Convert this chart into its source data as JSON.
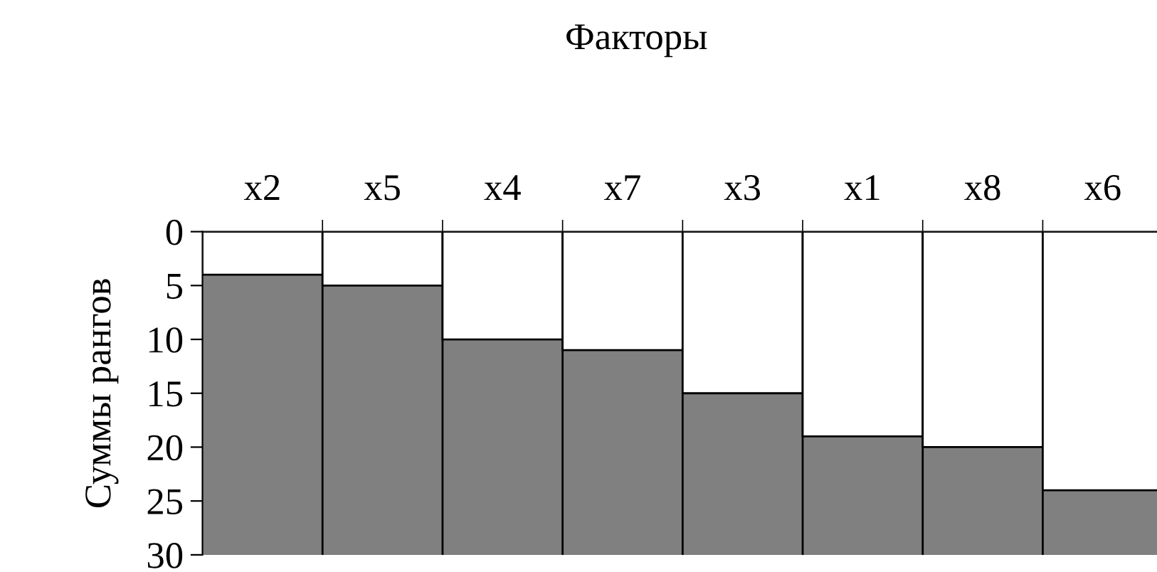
{
  "chart_data": {
    "type": "bar",
    "title": "Факторы",
    "ylabel": "Суммы рангов",
    "categories": [
      "x2",
      "x5",
      "x4",
      "x7",
      "x3",
      "x1",
      "x8",
      "x6"
    ],
    "values": [
      4,
      5,
      10,
      11,
      15,
      19,
      20,
      24
    ],
    "color": "#ffffff",
    "bands": [
      {
        "axis": "y",
        "from": 30,
        "to": 0,
        "color": "#808080"
      }
    ],
    "ylim": [
      30,
      0
    ],
    "yticks": [
      0,
      5,
      10,
      15,
      20,
      25,
      30
    ],
    "grid": "x"
  }
}
